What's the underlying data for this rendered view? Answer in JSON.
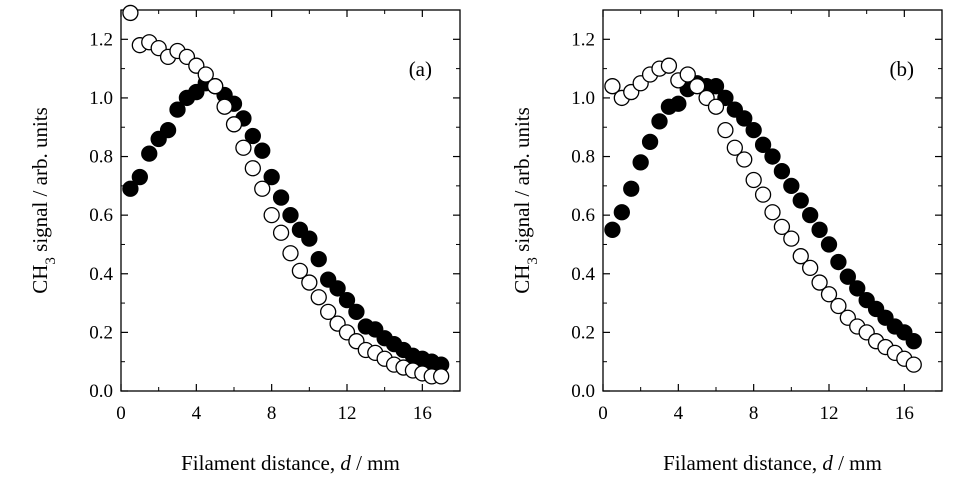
{
  "chart_data": [
    {
      "type": "scatter",
      "panel_label": "(a)",
      "xlabel": {
        "pre": "Filament distance, ",
        "italic": "d",
        "post": " / mm"
      },
      "ylabel": {
        "pre": "CH",
        "sub": "3",
        "post": " signal / arb. units"
      },
      "xlim": [
        0,
        18
      ],
      "ylim": [
        0.0,
        1.3
      ],
      "xticks": [
        0,
        4,
        8,
        12,
        16
      ],
      "xtick_labels": [
        "0",
        "4",
        "8",
        "12",
        "16"
      ],
      "yticks": [
        0.0,
        0.2,
        0.4,
        0.6,
        0.8,
        1.0,
        1.2
      ],
      "ytick_labels": [
        "0.0",
        "0.2",
        "0.4",
        "0.6",
        "0.8",
        "1.0",
        "1.2"
      ],
      "grid": false,
      "legend": "none",
      "series": [
        {
          "marker": "filled-circle",
          "color": "#000000",
          "points": [
            [
              0.5,
              0.69
            ],
            [
              1.0,
              0.73
            ],
            [
              1.5,
              0.81
            ],
            [
              2.0,
              0.86
            ],
            [
              2.5,
              0.89
            ],
            [
              3.0,
              0.96
            ],
            [
              3.5,
              1.0
            ],
            [
              4.0,
              1.02
            ],
            [
              4.5,
              1.05
            ],
            [
              5.0,
              1.04
            ],
            [
              5.5,
              1.01
            ],
            [
              6.0,
              0.98
            ],
            [
              6.5,
              0.93
            ],
            [
              7.0,
              0.87
            ],
            [
              7.5,
              0.82
            ],
            [
              8.0,
              0.73
            ],
            [
              8.5,
              0.66
            ],
            [
              9.0,
              0.6
            ],
            [
              9.5,
              0.55
            ],
            [
              10.0,
              0.52
            ],
            [
              10.5,
              0.45
            ],
            [
              11.0,
              0.38
            ],
            [
              11.5,
              0.35
            ],
            [
              12.0,
              0.31
            ],
            [
              12.5,
              0.27
            ],
            [
              13.0,
              0.22
            ],
            [
              13.5,
              0.21
            ],
            [
              14.0,
              0.18
            ],
            [
              14.5,
              0.16
            ],
            [
              15.0,
              0.14
            ],
            [
              15.5,
              0.12
            ],
            [
              16.0,
              0.11
            ],
            [
              16.5,
              0.1
            ],
            [
              17.0,
              0.09
            ]
          ]
        },
        {
          "marker": "open-circle",
          "color": "#000000",
          "points": [
            [
              0.5,
              1.29
            ],
            [
              1.0,
              1.18
            ],
            [
              1.5,
              1.19
            ],
            [
              2.0,
              1.17
            ],
            [
              2.5,
              1.14
            ],
            [
              3.0,
              1.16
            ],
            [
              3.5,
              1.14
            ],
            [
              4.0,
              1.11
            ],
            [
              4.5,
              1.08
            ],
            [
              5.0,
              1.04
            ],
            [
              5.5,
              0.97
            ],
            [
              6.0,
              0.91
            ],
            [
              6.5,
              0.83
            ],
            [
              7.0,
              0.76
            ],
            [
              7.5,
              0.69
            ],
            [
              8.0,
              0.6
            ],
            [
              8.5,
              0.54
            ],
            [
              9.0,
              0.47
            ],
            [
              9.5,
              0.41
            ],
            [
              10.0,
              0.37
            ],
            [
              10.5,
              0.32
            ],
            [
              11.0,
              0.27
            ],
            [
              11.5,
              0.23
            ],
            [
              12.0,
              0.2
            ],
            [
              12.5,
              0.17
            ],
            [
              13.0,
              0.14
            ],
            [
              13.5,
              0.13
            ],
            [
              14.0,
              0.11
            ],
            [
              14.5,
              0.09
            ],
            [
              15.0,
              0.08
            ],
            [
              15.5,
              0.07
            ],
            [
              16.0,
              0.06
            ],
            [
              16.5,
              0.05
            ],
            [
              17.0,
              0.05
            ]
          ]
        }
      ]
    },
    {
      "type": "scatter",
      "panel_label": "(b)",
      "xlabel": {
        "pre": "Filament distance, ",
        "italic": "d",
        "post": " / mm"
      },
      "ylabel": {
        "pre": "CH",
        "sub": "3",
        "post": " signal / arb. units"
      },
      "xlim": [
        0,
        18
      ],
      "ylim": [
        0.0,
        1.3
      ],
      "xticks": [
        0,
        4,
        8,
        12,
        16
      ],
      "xtick_labels": [
        "0",
        "4",
        "8",
        "12",
        "16"
      ],
      "yticks": [
        0.0,
        0.2,
        0.4,
        0.6,
        0.8,
        1.0,
        1.2
      ],
      "ytick_labels": [
        "0.0",
        "0.2",
        "0.4",
        "0.6",
        "0.8",
        "1.0",
        "1.2"
      ],
      "grid": false,
      "legend": "none",
      "series": [
        {
          "marker": "filled-circle",
          "color": "#000000",
          "points": [
            [
              0.5,
              0.55
            ],
            [
              1.0,
              0.61
            ],
            [
              1.5,
              0.69
            ],
            [
              2.0,
              0.78
            ],
            [
              2.5,
              0.85
            ],
            [
              3.0,
              0.92
            ],
            [
              3.5,
              0.97
            ],
            [
              4.0,
              0.98
            ],
            [
              4.5,
              1.03
            ],
            [
              5.0,
              1.05
            ],
            [
              5.5,
              1.04
            ],
            [
              6.0,
              1.04
            ],
            [
              6.5,
              1.0
            ],
            [
              7.0,
              0.96
            ],
            [
              7.5,
              0.93
            ],
            [
              8.0,
              0.89
            ],
            [
              8.5,
              0.84
            ],
            [
              9.0,
              0.8
            ],
            [
              9.5,
              0.75
            ],
            [
              10.0,
              0.7
            ],
            [
              10.5,
              0.65
            ],
            [
              11.0,
              0.6
            ],
            [
              11.5,
              0.55
            ],
            [
              12.0,
              0.5
            ],
            [
              12.5,
              0.44
            ],
            [
              13.0,
              0.39
            ],
            [
              13.5,
              0.35
            ],
            [
              14.0,
              0.31
            ],
            [
              14.5,
              0.28
            ],
            [
              15.0,
              0.25
            ],
            [
              15.5,
              0.22
            ],
            [
              16.0,
              0.2
            ],
            [
              16.5,
              0.17
            ]
          ]
        },
        {
          "marker": "open-circle",
          "color": "#000000",
          "points": [
            [
              0.5,
              1.04
            ],
            [
              1.0,
              1.0
            ],
            [
              1.5,
              1.02
            ],
            [
              2.0,
              1.05
            ],
            [
              2.5,
              1.08
            ],
            [
              3.0,
              1.1
            ],
            [
              3.5,
              1.11
            ],
            [
              4.0,
              1.06
            ],
            [
              4.5,
              1.08
            ],
            [
              5.0,
              1.04
            ],
            [
              5.5,
              1.0
            ],
            [
              6.0,
              0.97
            ],
            [
              6.5,
              0.89
            ],
            [
              7.0,
              0.83
            ],
            [
              7.5,
              0.79
            ],
            [
              8.0,
              0.72
            ],
            [
              8.5,
              0.67
            ],
            [
              9.0,
              0.61
            ],
            [
              9.5,
              0.56
            ],
            [
              10.0,
              0.52
            ],
            [
              10.5,
              0.46
            ],
            [
              11.0,
              0.42
            ],
            [
              11.5,
              0.37
            ],
            [
              12.0,
              0.33
            ],
            [
              12.5,
              0.29
            ],
            [
              13.0,
              0.25
            ],
            [
              13.5,
              0.22
            ],
            [
              14.0,
              0.2
            ],
            [
              14.5,
              0.17
            ],
            [
              15.0,
              0.15
            ],
            [
              15.5,
              0.13
            ],
            [
              16.0,
              0.11
            ],
            [
              16.5,
              0.09
            ]
          ]
        }
      ]
    }
  ]
}
